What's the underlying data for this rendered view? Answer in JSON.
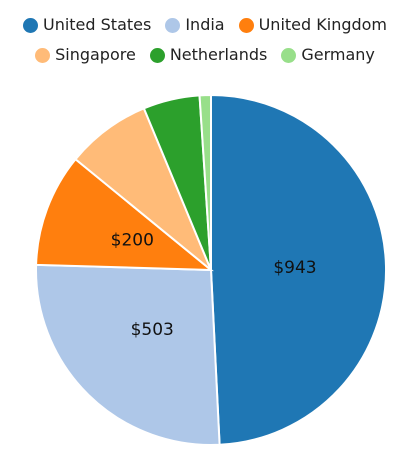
{
  "chart_data": {
    "type": "pie",
    "categories": [
      "United States",
      "India",
      "United Kingdom",
      "Singapore",
      "Netherlands",
      "Germany"
    ],
    "values": [
      943,
      503,
      200,
      150,
      100,
      20
    ],
    "colors": [
      "#1f77b4",
      "#aec7e8",
      "#ff7f0e",
      "#ffbb78",
      "#2ca02c",
      "#98df8a"
    ],
    "data_labels": [
      "$943",
      "$503",
      "$200",
      "",
      "",
      ""
    ],
    "legend_position": "top",
    "start_angle_deg": 0,
    "direction": "clockwise"
  }
}
